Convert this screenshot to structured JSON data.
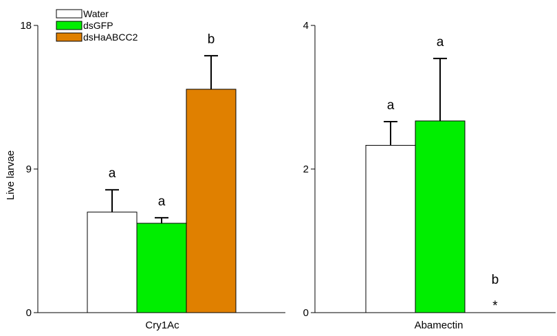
{
  "legend": [
    {
      "label": "Water",
      "color": "#ffffff"
    },
    {
      "label": "dsGFP",
      "color": "#00ee00"
    },
    {
      "label": "dsHaABCC2",
      "color": "#e08000"
    }
  ],
  "chart_data": [
    {
      "type": "bar",
      "categories": [
        "Cry1Ac"
      ],
      "xlabel": "Cry1Ac",
      "ylabel": "Live larvae",
      "ylim": [
        0,
        18
      ],
      "yticks": [
        "0",
        "9",
        "18"
      ],
      "series": [
        {
          "name": "Water",
          "values": [
            6.3
          ],
          "errors": [
            1.4
          ],
          "annotation": "a"
        },
        {
          "name": "dsGFP",
          "values": [
            5.6
          ],
          "errors": [
            0.35
          ],
          "annotation": "a"
        },
        {
          "name": "dsHaABCC2",
          "values": [
            14.0
          ],
          "errors": [
            2.1
          ],
          "annotation": "b"
        }
      ]
    },
    {
      "type": "bar",
      "categories": [
        "Abamectin"
      ],
      "xlabel": "Abamectin",
      "ylabel": "",
      "ylim": [
        0,
        4
      ],
      "yticks": [
        "0",
        "2",
        "4"
      ],
      "series": [
        {
          "name": "Water",
          "values": [
            2.33
          ],
          "errors": [
            0.33
          ],
          "annotation": "a"
        },
        {
          "name": "dsGFP",
          "values": [
            2.67
          ],
          "errors": [
            0.87
          ],
          "annotation": "a"
        },
        {
          "name": "dsHaABCC2",
          "values": [
            0
          ],
          "errors": [
            0
          ],
          "annotation": "b",
          "marker": "*"
        }
      ]
    }
  ]
}
